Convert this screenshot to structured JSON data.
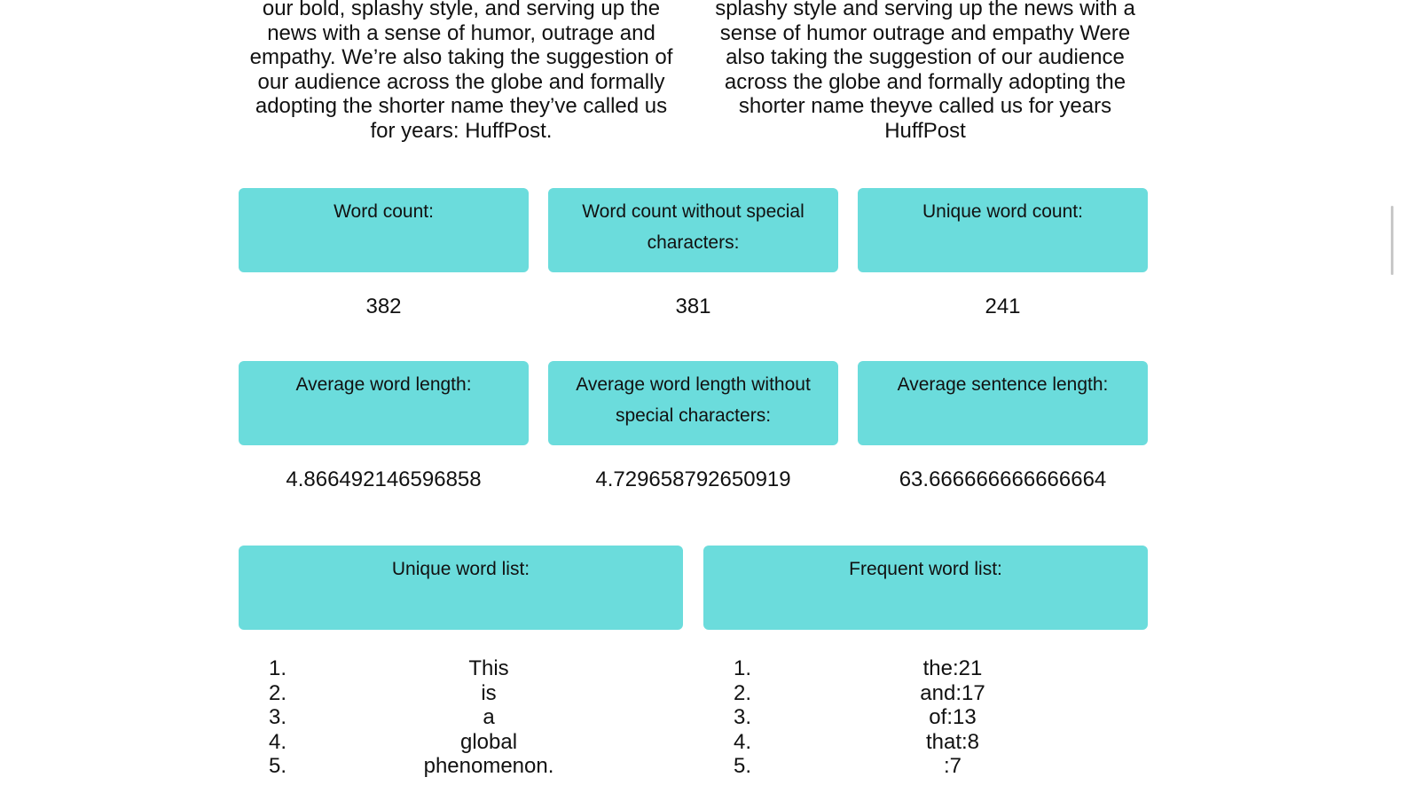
{
  "text": {
    "left_lines": [
      "our bold, splashy style, and serving up the",
      "news with a sense of humor, outrage and",
      "empathy. We’re also taking the suggestion of",
      "our audience across the globe and formally",
      "adopting the shorter name they’ve called us",
      "for years: HuffPost."
    ],
    "right_lines": [
      "splashy style and serving up the news with a",
      "sense of humor outrage and empathy Were",
      "also taking the suggestion of our audience",
      "across the globe and formally adopting the",
      "shorter name theyve called us for years",
      "HuffPost"
    ]
  },
  "stats": {
    "word_count": {
      "label": "Word count:",
      "value": "382"
    },
    "word_count_no_special": {
      "label": "Word count without special characters:",
      "value": "381"
    },
    "unique_word_count": {
      "label": "Unique word count:",
      "value": "241"
    },
    "avg_word_length": {
      "label": "Average word length:",
      "value": "4.866492146596858"
    },
    "avg_word_length_no_special": {
      "label": "Average word length without special characters:",
      "value": "4.729658792650919"
    },
    "avg_sentence_length": {
      "label": "Average sentence length:",
      "value": "63.666666666666664"
    }
  },
  "lists": {
    "unique": {
      "label": "Unique word list:",
      "items": [
        {
          "num": "1.",
          "word": "This"
        },
        {
          "num": "2.",
          "word": "is"
        },
        {
          "num": "3.",
          "word": "a"
        },
        {
          "num": "4.",
          "word": "global"
        },
        {
          "num": "5.",
          "word": "phenomenon."
        }
      ]
    },
    "frequent": {
      "label": "Frequent word list:",
      "items": [
        {
          "num": "1.",
          "word": "the:21"
        },
        {
          "num": "2.",
          "word": "and:17"
        },
        {
          "num": "3.",
          "word": "of:13"
        },
        {
          "num": "4.",
          "word": "that:8"
        },
        {
          "num": "5.",
          "word": ":7"
        }
      ]
    }
  },
  "colors": {
    "box_accent": "#6bdcdc"
  }
}
